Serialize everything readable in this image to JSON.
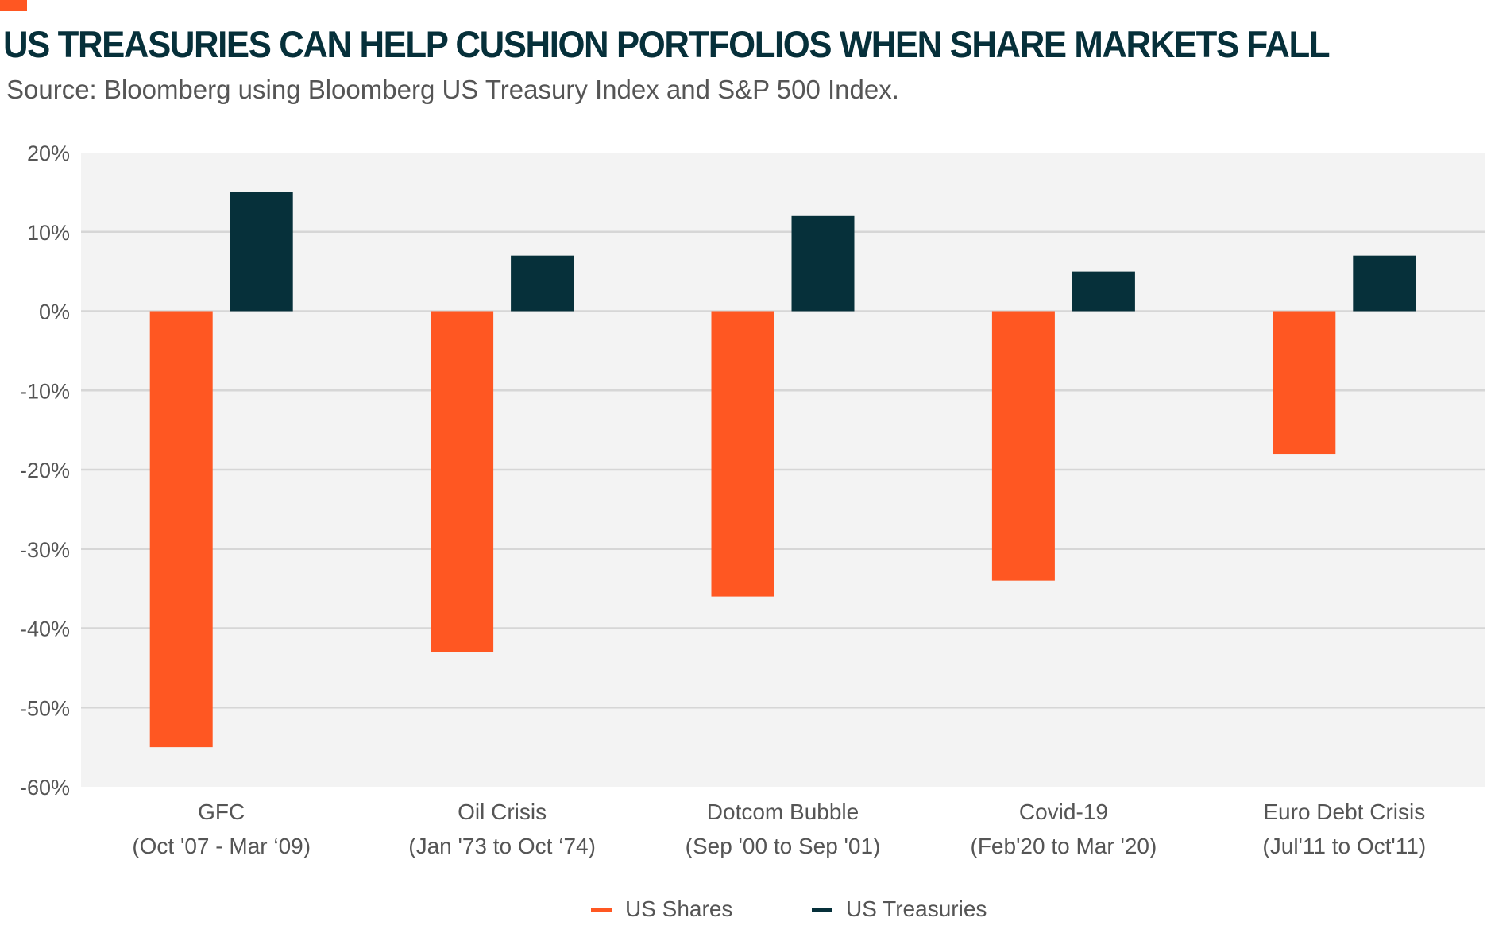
{
  "title": "US TREASURIES CAN HELP CUSHION PORTFOLIOS WHEN SHARE MARKETS FALL",
  "subtitle": "Source: Bloomberg using Bloomberg US Treasury Index and S&P 500 Index.",
  "chart_data": {
    "type": "bar",
    "title": "US TREASURIES CAN HELP CUSHION PORTFOLIOS WHEN SHARE MARKETS FALL",
    "categories": [
      [
        "GFC",
        "(Oct '07 - Mar ‘09)"
      ],
      [
        "Oil Crisis",
        "(Jan '73 to Oct ‘74)"
      ],
      [
        "Dotcom Bubble",
        "(Sep '00 to Sep '01)"
      ],
      [
        "Covid-19",
        "(Feb'20 to Mar '20)"
      ],
      [
        "Euro Debt Crisis",
        "(Jul'11 to Oct'11)"
      ]
    ],
    "series": [
      {
        "name": "US Shares",
        "color": "#ff5722",
        "values": [
          -55,
          -43,
          -36,
          -34,
          -18
        ]
      },
      {
        "name": "US Treasuries",
        "color": "#06303a",
        "values": [
          15,
          7,
          12,
          5,
          7
        ]
      }
    ],
    "ylim": [
      -60,
      20
    ],
    "yticks": [
      20,
      10,
      0,
      -10,
      -20,
      -30,
      -40,
      -50,
      -60
    ],
    "ytick_labels": [
      "20%",
      "10%",
      "0%",
      "-10%",
      "-20%",
      "-30%",
      "-40%",
      "-50%",
      "-60%"
    ],
    "xlabel": "",
    "ylabel": "",
    "grid": true,
    "legend": "bottom-center"
  }
}
